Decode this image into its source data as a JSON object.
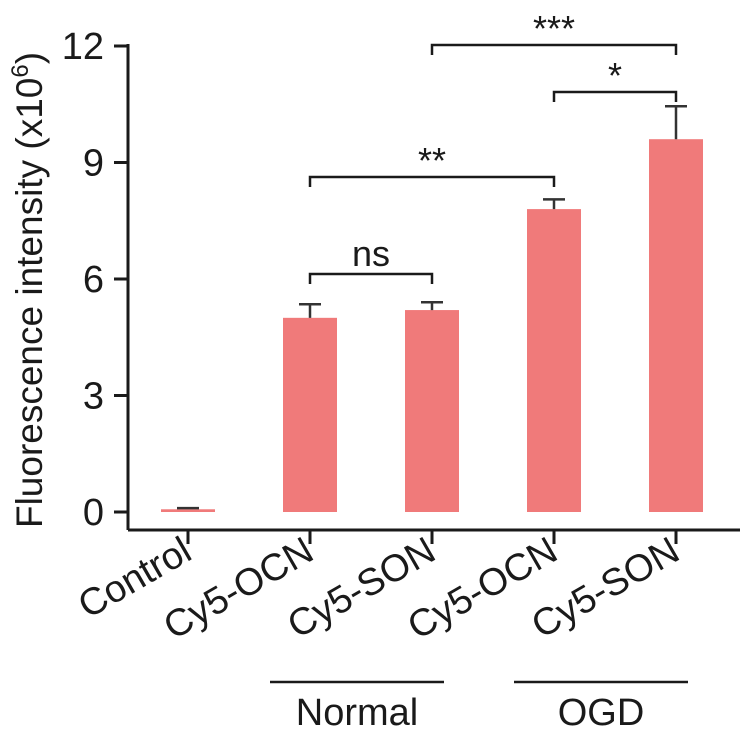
{
  "chart_data": {
    "type": "bar",
    "categories": [
      "Control",
      "Cy5-OCN",
      "Cy5-SON",
      "Cy5-OCN",
      "Cy5-SON"
    ],
    "values": [
      0.07,
      5.0,
      5.2,
      7.8,
      9.6
    ],
    "errors": [
      0.03,
      0.35,
      0.2,
      0.25,
      0.85
    ],
    "ylabel": "Fluorescence intensity (x10",
    "ylabel_exp": "6",
    "ylabel_close": ")",
    "ylim": [
      0,
      12
    ],
    "yticks": [
      0,
      3,
      6,
      9,
      12
    ],
    "bar_color": "#f07a7a",
    "groups": [
      {
        "label": "Normal",
        "from": 1,
        "to": 2
      },
      {
        "label": "OGD",
        "from": 3,
        "to": 4
      }
    ],
    "significance": [
      {
        "from": 1,
        "to": 2,
        "label": "ns"
      },
      {
        "from": 1,
        "to": 3,
        "label": "**"
      },
      {
        "from": 3,
        "to": 4,
        "label": "*"
      },
      {
        "from": 2,
        "to": 4,
        "label": "***"
      }
    ]
  }
}
